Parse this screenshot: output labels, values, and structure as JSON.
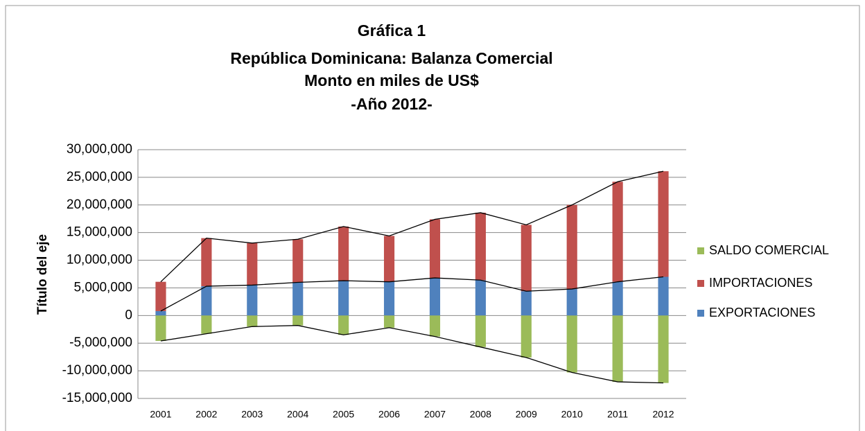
{
  "chart_data": {
    "type": "stacked_bar_line",
    "title": [
      "Gráfica 1",
      "República Dominicana: Balanza Comercial",
      "Monto en miles de US$",
      "-Año 2012-"
    ],
    "ylabel": "Título del eje",
    "categories": [
      "2001",
      "2002",
      "2003",
      "2004",
      "2005",
      "2006",
      "2007",
      "2008",
      "2009",
      "2010",
      "2011",
      "2012"
    ],
    "series": [
      {
        "name": "EXPORTACIONES",
        "color": "#4f81bd",
        "values": [
          800000,
          5300000,
          5500000,
          6000000,
          6300000,
          6100000,
          6800000,
          6400000,
          4400000,
          4800000,
          6100000,
          7000000
        ]
      },
      {
        "name": "IMPORTACIONES",
        "color": "#c0504d",
        "values": [
          5300000,
          8700000,
          7600000,
          7800000,
          9800000,
          8300000,
          10600000,
          12200000,
          12000000,
          15200000,
          18100000,
          19100000
        ]
      },
      {
        "name": "SALDO COMERCIAL",
        "color": "#9bbb59",
        "values": [
          -4600000,
          -3300000,
          -2000000,
          -1800000,
          -3500000,
          -2200000,
          -3800000,
          -5700000,
          -7600000,
          -10300000,
          -12000000,
          -12200000
        ]
      }
    ],
    "ylim": [
      -15000000,
      30000000
    ],
    "yticks": [
      {
        "value": -15000000,
        "label": "-15,000,000"
      },
      {
        "value": -10000000,
        "label": "-10,000,000"
      },
      {
        "value": -5000000,
        "label": "-5,000,000"
      },
      0,
      {
        "value": 5000000,
        "label": "5,000,000"
      },
      {
        "value": 10000000,
        "label": "10,000,000"
      },
      {
        "value": 15000000,
        "label": "15,000,000"
      },
      {
        "value": 20000000,
        "label": "20,000,000"
      },
      {
        "value": 25000000,
        "label": "25,000,000"
      },
      {
        "value": 30000000,
        "label": "30,000,000"
      }
    ],
    "grid": true,
    "legend": "right"
  }
}
